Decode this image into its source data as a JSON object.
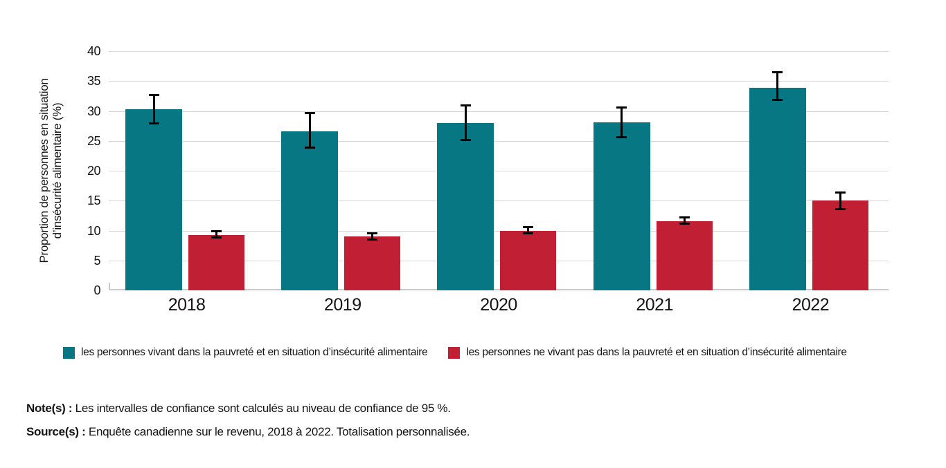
{
  "chart_data": {
    "type": "bar",
    "title": "",
    "categories": [
      "2018",
      "2019",
      "2020",
      "2021",
      "2022"
    ],
    "series": [
      {
        "name": "les personnes vivant dans la pauvreté et en situation d’insécurité alimentaire",
        "color": "#087784",
        "values": [
          30.3,
          26.6,
          28.0,
          28.1,
          33.9
        ],
        "ci_low": [
          27.9,
          23.8,
          25.1,
          25.6,
          31.8
        ],
        "ci_high": [
          32.7,
          29.7,
          31.0,
          30.6,
          36.5
        ]
      },
      {
        "name": "les personnes ne vivant pas dans la pauvreté et en situation d’insécurité alimentaire",
        "color": "#C11F33",
        "values": [
          9.3,
          9.0,
          10.0,
          11.6,
          15.0
        ],
        "ci_low": [
          8.8,
          8.4,
          9.5,
          11.1,
          13.5
        ],
        "ci_high": [
          9.9,
          9.6,
          10.6,
          12.2,
          16.4
        ]
      }
    ],
    "xlabel": "",
    "ylabel": "Proportion de personnes en situation\nd’insécurité alimentaire (%)",
    "ylim": [
      0,
      40
    ],
    "yticks": [
      0,
      5,
      10,
      15,
      20,
      25,
      30,
      35,
      40
    ],
    "grid": true,
    "legend_position": "bottom",
    "error_bars": "intervalles de confiance de 95 %"
  },
  "notes": {
    "note_label": "Note(s) :",
    "note_text": " Les intervalles de confiance sont calculés au niveau de confiance de 95 %.",
    "source_label": "Source(s) :",
    "source_text": " Enquête canadienne sur le revenu, 2018 à 2022. Totalisation personnalisée."
  }
}
